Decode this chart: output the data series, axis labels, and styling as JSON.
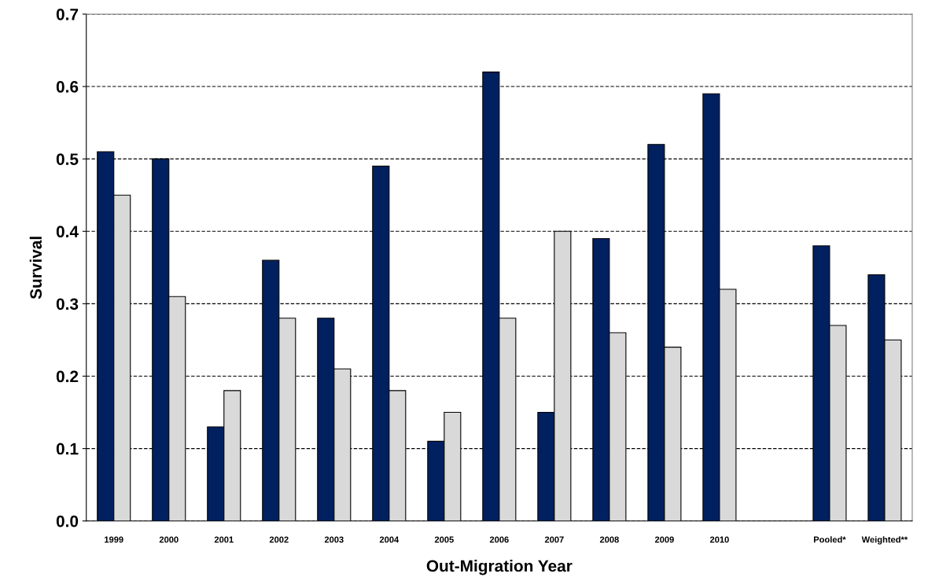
{
  "chart_data": {
    "type": "bar",
    "xlabel": "Out-Migration Year",
    "ylabel": "Survival",
    "categories": [
      "1999",
      "2000",
      "2001",
      "2002",
      "2003",
      "2004",
      "2005",
      "2006",
      "2007",
      "2008",
      "2009",
      "2010",
      null,
      "Pooled*",
      "Weighted**"
    ],
    "series": [
      {
        "color": "#002060",
        "values": [
          0.51,
          0.5,
          0.13,
          0.36,
          0.28,
          0.49,
          0.11,
          0.62,
          0.15,
          0.39,
          0.52,
          0.59,
          null,
          0.38,
          0.34
        ]
      },
      {
        "color": "#d9d9d9",
        "values": [
          0.45,
          0.31,
          0.18,
          0.28,
          0.21,
          0.18,
          0.15,
          0.28,
          0.4,
          0.26,
          0.24,
          0.32,
          null,
          0.27,
          0.25
        ]
      }
    ],
    "ylim": [
      0,
      0.7
    ],
    "yticks": [
      {
        "value": 0,
        "label": "0.0"
      },
      0.1,
      0.2,
      0.3,
      0.4,
      0.5,
      0.6,
      0.7
    ],
    "grid": "y",
    "legend": false
  }
}
